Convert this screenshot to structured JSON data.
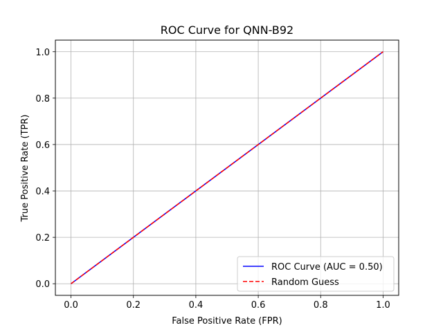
{
  "chart_data": {
    "type": "line",
    "title": "ROC Curve for QNN-B92",
    "xlabel": "False Positive Rate (FPR)",
    "ylabel": "True Positive Rate (TPR)",
    "xlim": [
      -0.05,
      1.05
    ],
    "ylim": [
      -0.05,
      1.05
    ],
    "x_ticks": [
      "0.0",
      "0.2",
      "0.4",
      "0.6",
      "0.8",
      "1.0"
    ],
    "y_ticks": [
      "0.0",
      "0.2",
      "0.4",
      "0.6",
      "0.8",
      "1.0"
    ],
    "grid": true,
    "legend_position": "lower-right",
    "series": [
      {
        "name": "ROC Curve (AUC = 0.50)",
        "x": [
          0.0,
          1.0
        ],
        "y": [
          0.0,
          1.0
        ],
        "color": "#0000ff",
        "style": "solid"
      },
      {
        "name": "Random Guess",
        "x": [
          0.0,
          1.0
        ],
        "y": [
          0.0,
          1.0
        ],
        "color": "#ff0000",
        "style": "dashed"
      }
    ]
  }
}
